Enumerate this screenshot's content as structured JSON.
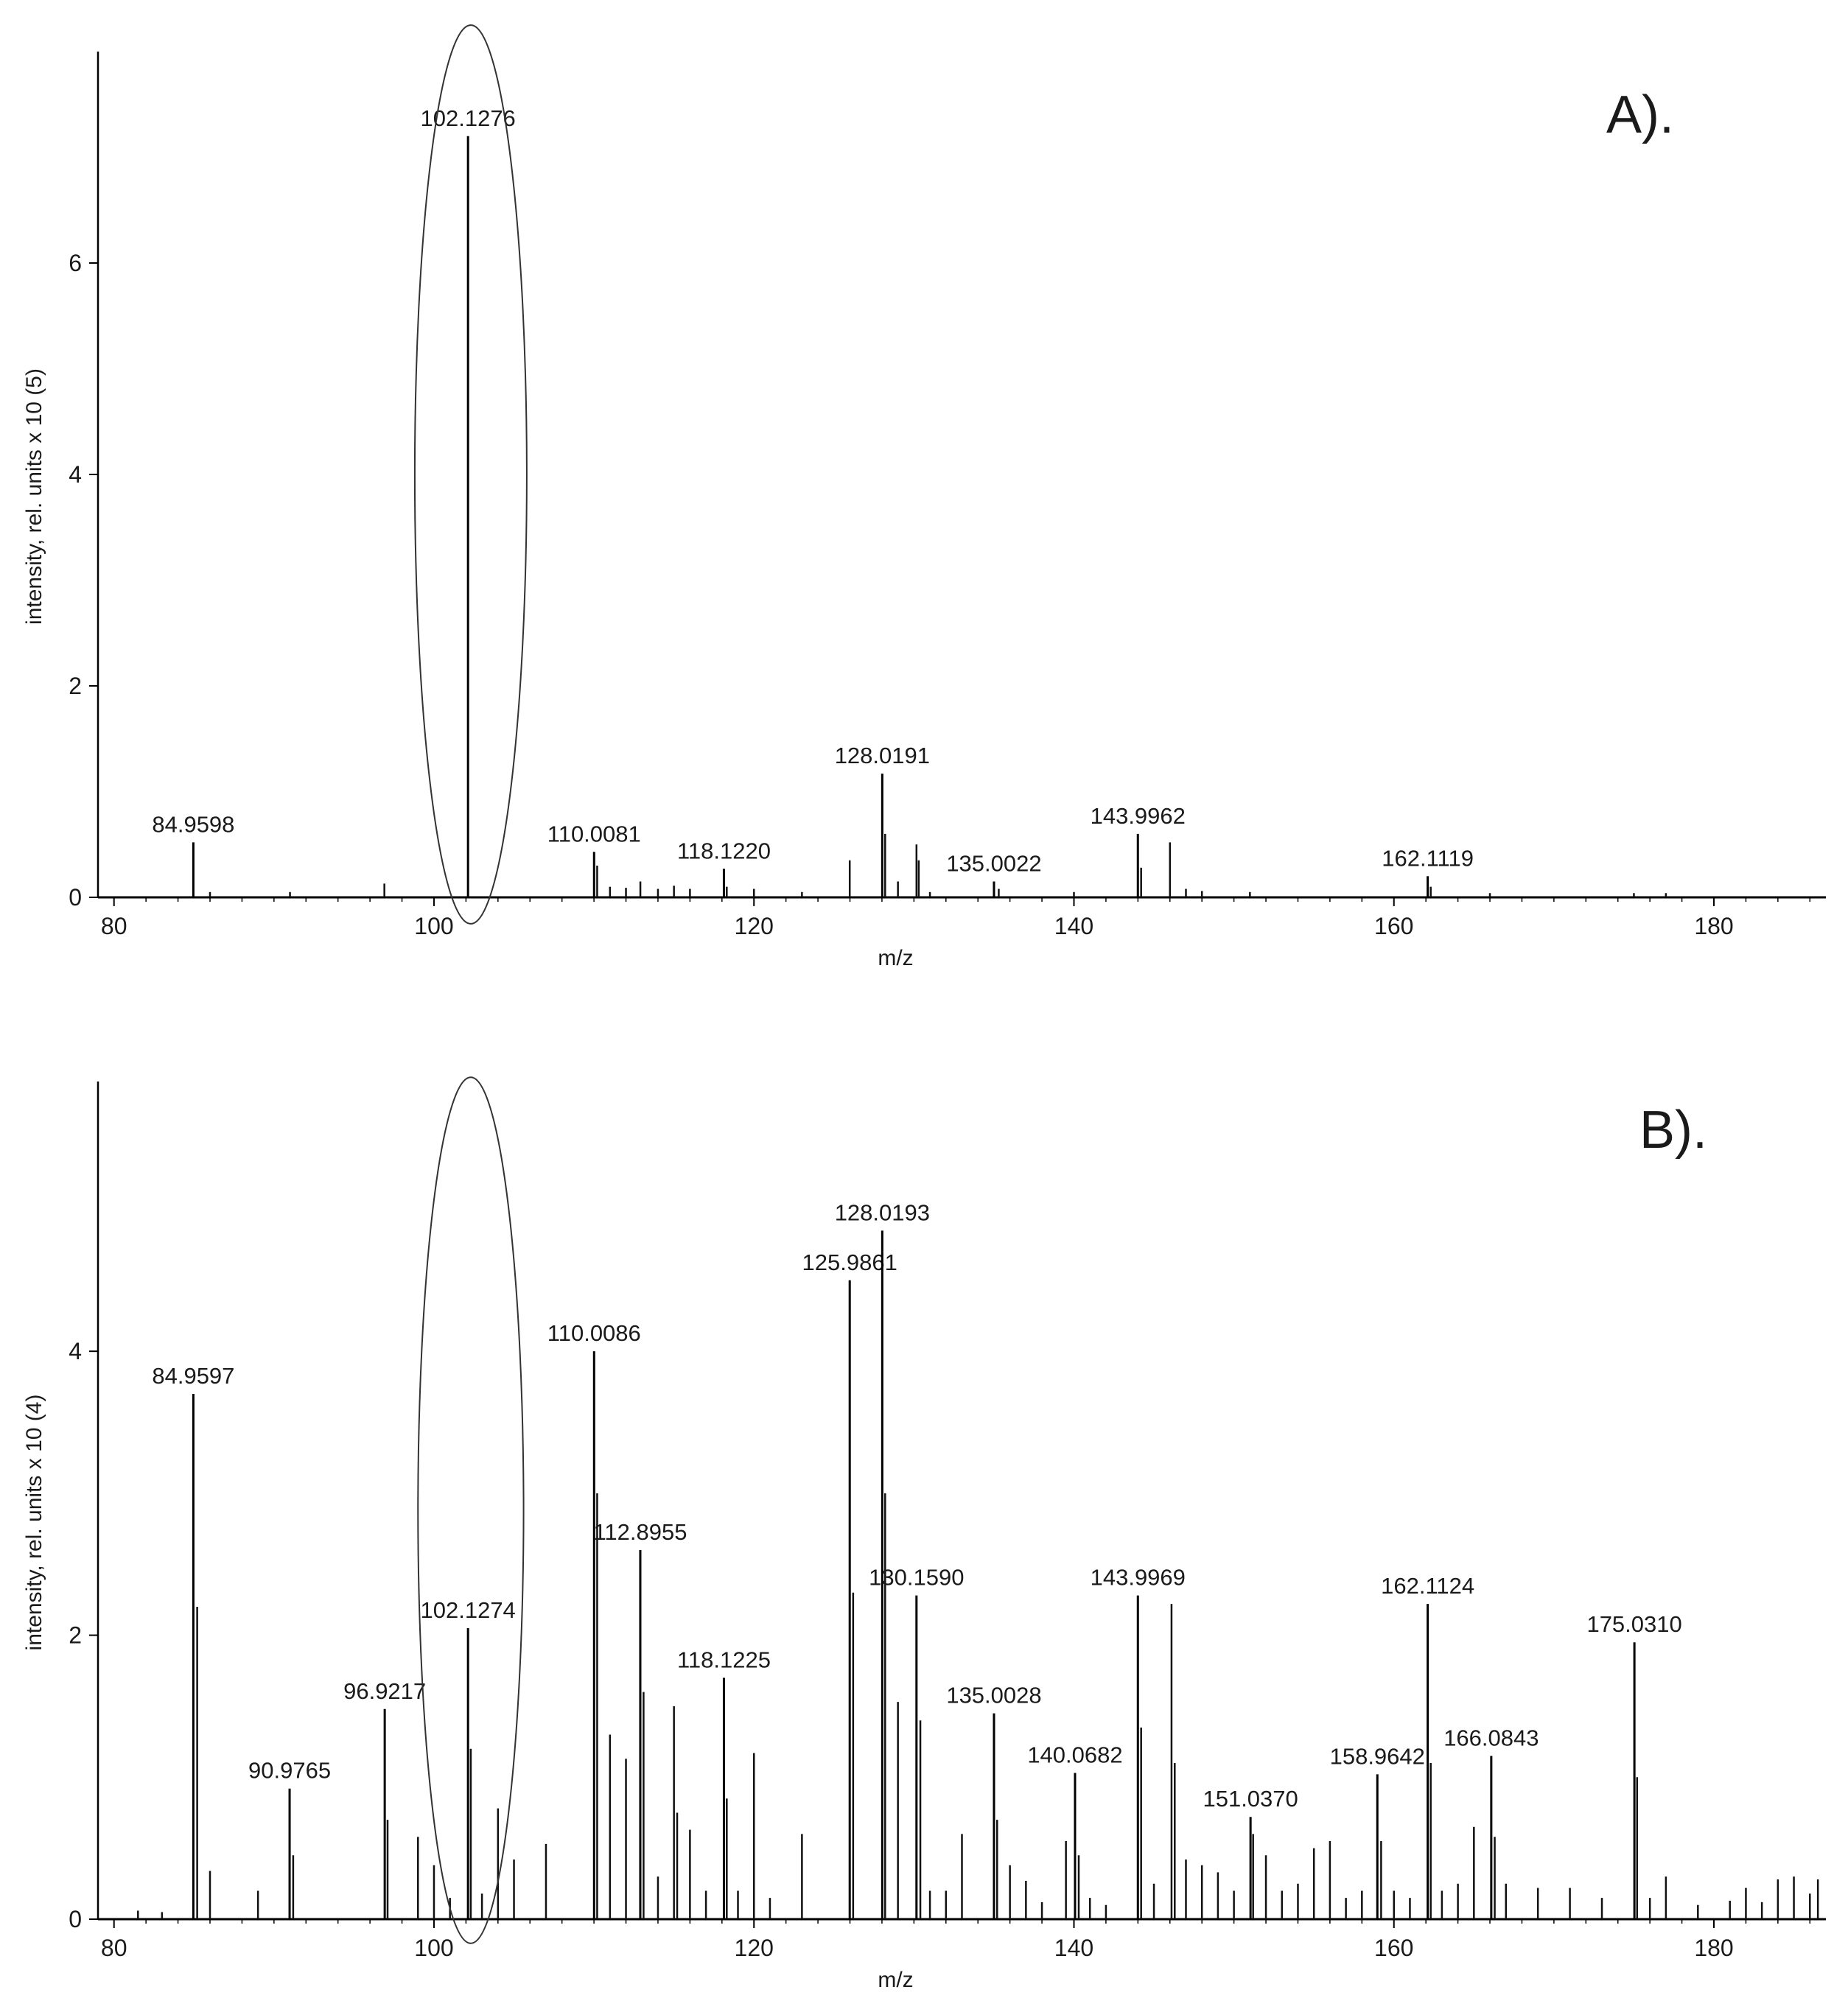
{
  "chart_data": [
    {
      "type": "spectrum",
      "panel_label": "A).",
      "xlabel": "m/z",
      "ylabel": "intensity, rel. units x 10 (5)",
      "xlim": [
        79,
        187
      ],
      "ylim": [
        0,
        8
      ],
      "x_ticks": [
        80,
        100,
        120,
        140,
        160,
        180
      ],
      "y_ticks": [
        0,
        2,
        4,
        6
      ],
      "highlight_ellipse": {
        "center_x": 102.3,
        "center_y": 4.0,
        "radius_x": 3.5,
        "radius_y": 4.25
      },
      "labeled_peaks": [
        {
          "x": 84.9598,
          "y": 0.52,
          "label": "84.9598"
        },
        {
          "x": 102.1276,
          "y": 7.2,
          "label": "102.1276"
        },
        {
          "x": 110.0081,
          "y": 0.43,
          "label": "110.0081"
        },
        {
          "x": 118.122,
          "y": 0.27,
          "label": "118.1220"
        },
        {
          "x": 128.0191,
          "y": 1.17,
          "label": "128.0191"
        },
        {
          "x": 135.0022,
          "y": 0.15,
          "label": "135.0022"
        },
        {
          "x": 143.9962,
          "y": 0.6,
          "label": "143.9962"
        },
        {
          "x": 162.1119,
          "y": 0.2,
          "label": "162.1119"
        }
      ],
      "minor_peaks": [
        {
          "x": 86.0,
          "y": 0.05
        },
        {
          "x": 91.0,
          "y": 0.05
        },
        {
          "x": 96.9,
          "y": 0.13
        },
        {
          "x": 110.2,
          "y": 0.3
        },
        {
          "x": 111.0,
          "y": 0.1
        },
        {
          "x": 112.0,
          "y": 0.09
        },
        {
          "x": 112.9,
          "y": 0.15
        },
        {
          "x": 114.0,
          "y": 0.08
        },
        {
          "x": 115.0,
          "y": 0.11
        },
        {
          "x": 116.0,
          "y": 0.08
        },
        {
          "x": 118.3,
          "y": 0.1
        },
        {
          "x": 120.0,
          "y": 0.08
        },
        {
          "x": 123.0,
          "y": 0.05
        },
        {
          "x": 125.9861,
          "y": 0.35
        },
        {
          "x": 128.2,
          "y": 0.6
        },
        {
          "x": 129.0,
          "y": 0.15
        },
        {
          "x": 130.159,
          "y": 0.5
        },
        {
          "x": 130.3,
          "y": 0.35
        },
        {
          "x": 131.0,
          "y": 0.05
        },
        {
          "x": 135.3,
          "y": 0.08
        },
        {
          "x": 140.0,
          "y": 0.05
        },
        {
          "x": 144.2,
          "y": 0.28
        },
        {
          "x": 146.0,
          "y": 0.52
        },
        {
          "x": 147.0,
          "y": 0.08
        },
        {
          "x": 148.0,
          "y": 0.06
        },
        {
          "x": 151.0,
          "y": 0.05
        },
        {
          "x": 162.3,
          "y": 0.1
        },
        {
          "x": 166.0,
          "y": 0.04
        },
        {
          "x": 175.0,
          "y": 0.04
        },
        {
          "x": 177.0,
          "y": 0.04
        }
      ]
    },
    {
      "type": "spectrum",
      "panel_label": "B).",
      "xlabel": "m/z",
      "ylabel": "intensity, rel. units x 10 (4)",
      "xlim": [
        79,
        187
      ],
      "ylim": [
        0,
        5.9
      ],
      "x_ticks": [
        80,
        100,
        120,
        140,
        160,
        180
      ],
      "y_ticks": [
        0,
        2,
        4
      ],
      "highlight_ellipse": {
        "center_x": 102.3,
        "center_y": 2.88,
        "radius_x": 3.3,
        "radius_y": 3.05
      },
      "labeled_peaks": [
        {
          "x": 84.9597,
          "y": 3.7,
          "label": "84.9597"
        },
        {
          "x": 90.9765,
          "y": 0.92,
          "label": "90.9765"
        },
        {
          "x": 96.9217,
          "y": 1.48,
          "label": "96.9217"
        },
        {
          "x": 102.1274,
          "y": 2.05,
          "label": "102.1274"
        },
        {
          "x": 110.0086,
          "y": 4.0,
          "label": "110.0086"
        },
        {
          "x": 112.8955,
          "y": 2.6,
          "label": "112.8955"
        },
        {
          "x": 118.1225,
          "y": 1.7,
          "label": "118.1225"
        },
        {
          "x": 125.9861,
          "y": 4.5,
          "label": "125.9861"
        },
        {
          "x": 128.0193,
          "y": 4.85,
          "label": "128.0193"
        },
        {
          "x": 130.159,
          "y": 2.28,
          "label": "130.1590"
        },
        {
          "x": 135.0028,
          "y": 1.45,
          "label": "135.0028"
        },
        {
          "x": 140.0682,
          "y": 1.03,
          "label": "140.0682"
        },
        {
          "x": 143.9969,
          "y": 2.28,
          "label": "143.9969"
        },
        {
          "x": 151.037,
          "y": 0.72,
          "label": "151.0370"
        },
        {
          "x": 158.9642,
          "y": 1.02,
          "label": "158.9642"
        },
        {
          "x": 162.1124,
          "y": 2.22,
          "label": "162.1124"
        },
        {
          "x": 166.0843,
          "y": 1.15,
          "label": "166.0843"
        },
        {
          "x": 175.031,
          "y": 1.95,
          "label": "175.0310"
        }
      ],
      "minor_peaks": [
        {
          "x": 81.5,
          "y": 0.06
        },
        {
          "x": 83.0,
          "y": 0.05
        },
        {
          "x": 85.2,
          "y": 2.2
        },
        {
          "x": 86.0,
          "y": 0.34
        },
        {
          "x": 89.0,
          "y": 0.2
        },
        {
          "x": 91.2,
          "y": 0.45
        },
        {
          "x": 97.1,
          "y": 0.7
        },
        {
          "x": 99.0,
          "y": 0.58
        },
        {
          "x": 100.0,
          "y": 0.38
        },
        {
          "x": 101.0,
          "y": 0.15
        },
        {
          "x": 102.3,
          "y": 1.2
        },
        {
          "x": 103.0,
          "y": 0.18
        },
        {
          "x": 104.0,
          "y": 0.78
        },
        {
          "x": 105.0,
          "y": 0.42
        },
        {
          "x": 107.0,
          "y": 0.53
        },
        {
          "x": 110.2,
          "y": 3.0
        },
        {
          "x": 111.0,
          "y": 1.3
        },
        {
          "x": 112.0,
          "y": 1.13
        },
        {
          "x": 113.1,
          "y": 1.6
        },
        {
          "x": 114.0,
          "y": 0.3
        },
        {
          "x": 115.0,
          "y": 1.5
        },
        {
          "x": 115.2,
          "y": 0.75
        },
        {
          "x": 116.0,
          "y": 0.63
        },
        {
          "x": 117.0,
          "y": 0.2
        },
        {
          "x": 118.3,
          "y": 0.85
        },
        {
          "x": 119.0,
          "y": 0.2
        },
        {
          "x": 120.0,
          "y": 1.17
        },
        {
          "x": 121.0,
          "y": 0.15
        },
        {
          "x": 123.0,
          "y": 0.6
        },
        {
          "x": 126.2,
          "y": 2.3
        },
        {
          "x": 128.2,
          "y": 3.0
        },
        {
          "x": 129.0,
          "y": 1.53
        },
        {
          "x": 130.4,
          "y": 1.4
        },
        {
          "x": 131.0,
          "y": 0.2
        },
        {
          "x": 132.0,
          "y": 0.2
        },
        {
          "x": 133.0,
          "y": 0.6
        },
        {
          "x": 135.2,
          "y": 0.7
        },
        {
          "x": 136.0,
          "y": 0.38
        },
        {
          "x": 137.0,
          "y": 0.27
        },
        {
          "x": 138.0,
          "y": 0.12
        },
        {
          "x": 139.5,
          "y": 0.55
        },
        {
          "x": 140.3,
          "y": 0.45
        },
        {
          "x": 141.0,
          "y": 0.15
        },
        {
          "x": 142.0,
          "y": 0.1
        },
        {
          "x": 144.2,
          "y": 1.35
        },
        {
          "x": 145.0,
          "y": 0.25
        },
        {
          "x": 146.1,
          "y": 2.22
        },
        {
          "x": 146.3,
          "y": 1.1
        },
        {
          "x": 147.0,
          "y": 0.42
        },
        {
          "x": 148.0,
          "y": 0.38
        },
        {
          "x": 149.0,
          "y": 0.33
        },
        {
          "x": 150.0,
          "y": 0.2
        },
        {
          "x": 151.2,
          "y": 0.6
        },
        {
          "x": 152.0,
          "y": 0.45
        },
        {
          "x": 153.0,
          "y": 0.2
        },
        {
          "x": 154.0,
          "y": 0.25
        },
        {
          "x": 155.0,
          "y": 0.5
        },
        {
          "x": 156.0,
          "y": 0.55
        },
        {
          "x": 157.0,
          "y": 0.15
        },
        {
          "x": 158.0,
          "y": 0.2
        },
        {
          "x": 159.2,
          "y": 0.55
        },
        {
          "x": 160.0,
          "y": 0.2
        },
        {
          "x": 161.0,
          "y": 0.15
        },
        {
          "x": 162.3,
          "y": 1.1
        },
        {
          "x": 163.0,
          "y": 0.2
        },
        {
          "x": 164.0,
          "y": 0.25
        },
        {
          "x": 165.0,
          "y": 0.65
        },
        {
          "x": 166.3,
          "y": 0.58
        },
        {
          "x": 167.0,
          "y": 0.25
        },
        {
          "x": 169.0,
          "y": 0.22
        },
        {
          "x": 171.0,
          "y": 0.22
        },
        {
          "x": 173.0,
          "y": 0.15
        },
        {
          "x": 175.2,
          "y": 1.0
        },
        {
          "x": 176.0,
          "y": 0.15
        },
        {
          "x": 177.0,
          "y": 0.3
        },
        {
          "x": 179.0,
          "y": 0.1
        },
        {
          "x": 181.0,
          "y": 0.13
        },
        {
          "x": 182.0,
          "y": 0.22
        },
        {
          "x": 183.0,
          "y": 0.12
        },
        {
          "x": 184.0,
          "y": 0.28
        },
        {
          "x": 185.0,
          "y": 0.3
        },
        {
          "x": 186.0,
          "y": 0.18
        },
        {
          "x": 186.5,
          "y": 0.28
        }
      ]
    }
  ]
}
